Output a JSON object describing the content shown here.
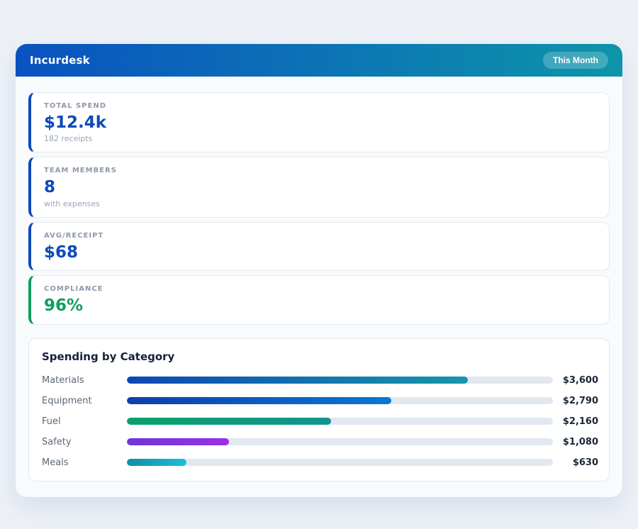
{
  "header": {
    "title": "Incurdesk",
    "badge_label": "This Month"
  },
  "stats": [
    {
      "label": "TOTAL SPEND",
      "value": "$12.4k",
      "sub": "182 receipts",
      "accent": "#0d49bb"
    },
    {
      "label": "TEAM MEMBERS",
      "value": "8",
      "sub": "with expenses",
      "accent": "#0d49bb"
    },
    {
      "label": "AVG/RECEIPT",
      "value": "$68",
      "sub": "",
      "accent": "#0d49bb"
    },
    {
      "label": "COMPLIANCE",
      "value": "96%",
      "sub": "",
      "accent": "#0d9f5c"
    }
  ],
  "chart_data": {
    "type": "bar",
    "orientation": "horizontal",
    "title": "Spending by Category",
    "categories": [
      "Materials",
      "Equipment",
      "Fuel",
      "Safety",
      "Meals"
    ],
    "values": [
      3600,
      2790,
      2160,
      1080,
      630
    ],
    "value_labels": [
      "$3,600",
      "$2,790",
      "$2,160",
      "$1,080",
      "$630"
    ],
    "axis_max": 4500,
    "grid": false,
    "legend": false,
    "bar_colors": [
      [
        "#0d47b5",
        "#1597a9"
      ],
      [
        "#0c3fae",
        "#0b76d6"
      ],
      [
        "#0aa169",
        "#12948e"
      ],
      [
        "#6d36d8",
        "#9b2fe8"
      ],
      [
        "#0e8ea6",
        "#1dbfdb"
      ]
    ],
    "track_color": "#e2e8f0"
  },
  "colors": {
    "page_bg": "#edf1f7",
    "panel_bg": "#f8fafc",
    "header_gradient_from": "#0a52c0",
    "header_gradient_to": "#0e94aa",
    "card_border": "#e3e9f1",
    "accent_blue": "#0d49bb",
    "accent_green": "#0d9f5c",
    "label_gray": "#8e99ab",
    "sub_gray": "#9aa4b5",
    "title_dark": "#16213a",
    "row_label": "#5c6678",
    "value_dark": "#1b2639"
  }
}
